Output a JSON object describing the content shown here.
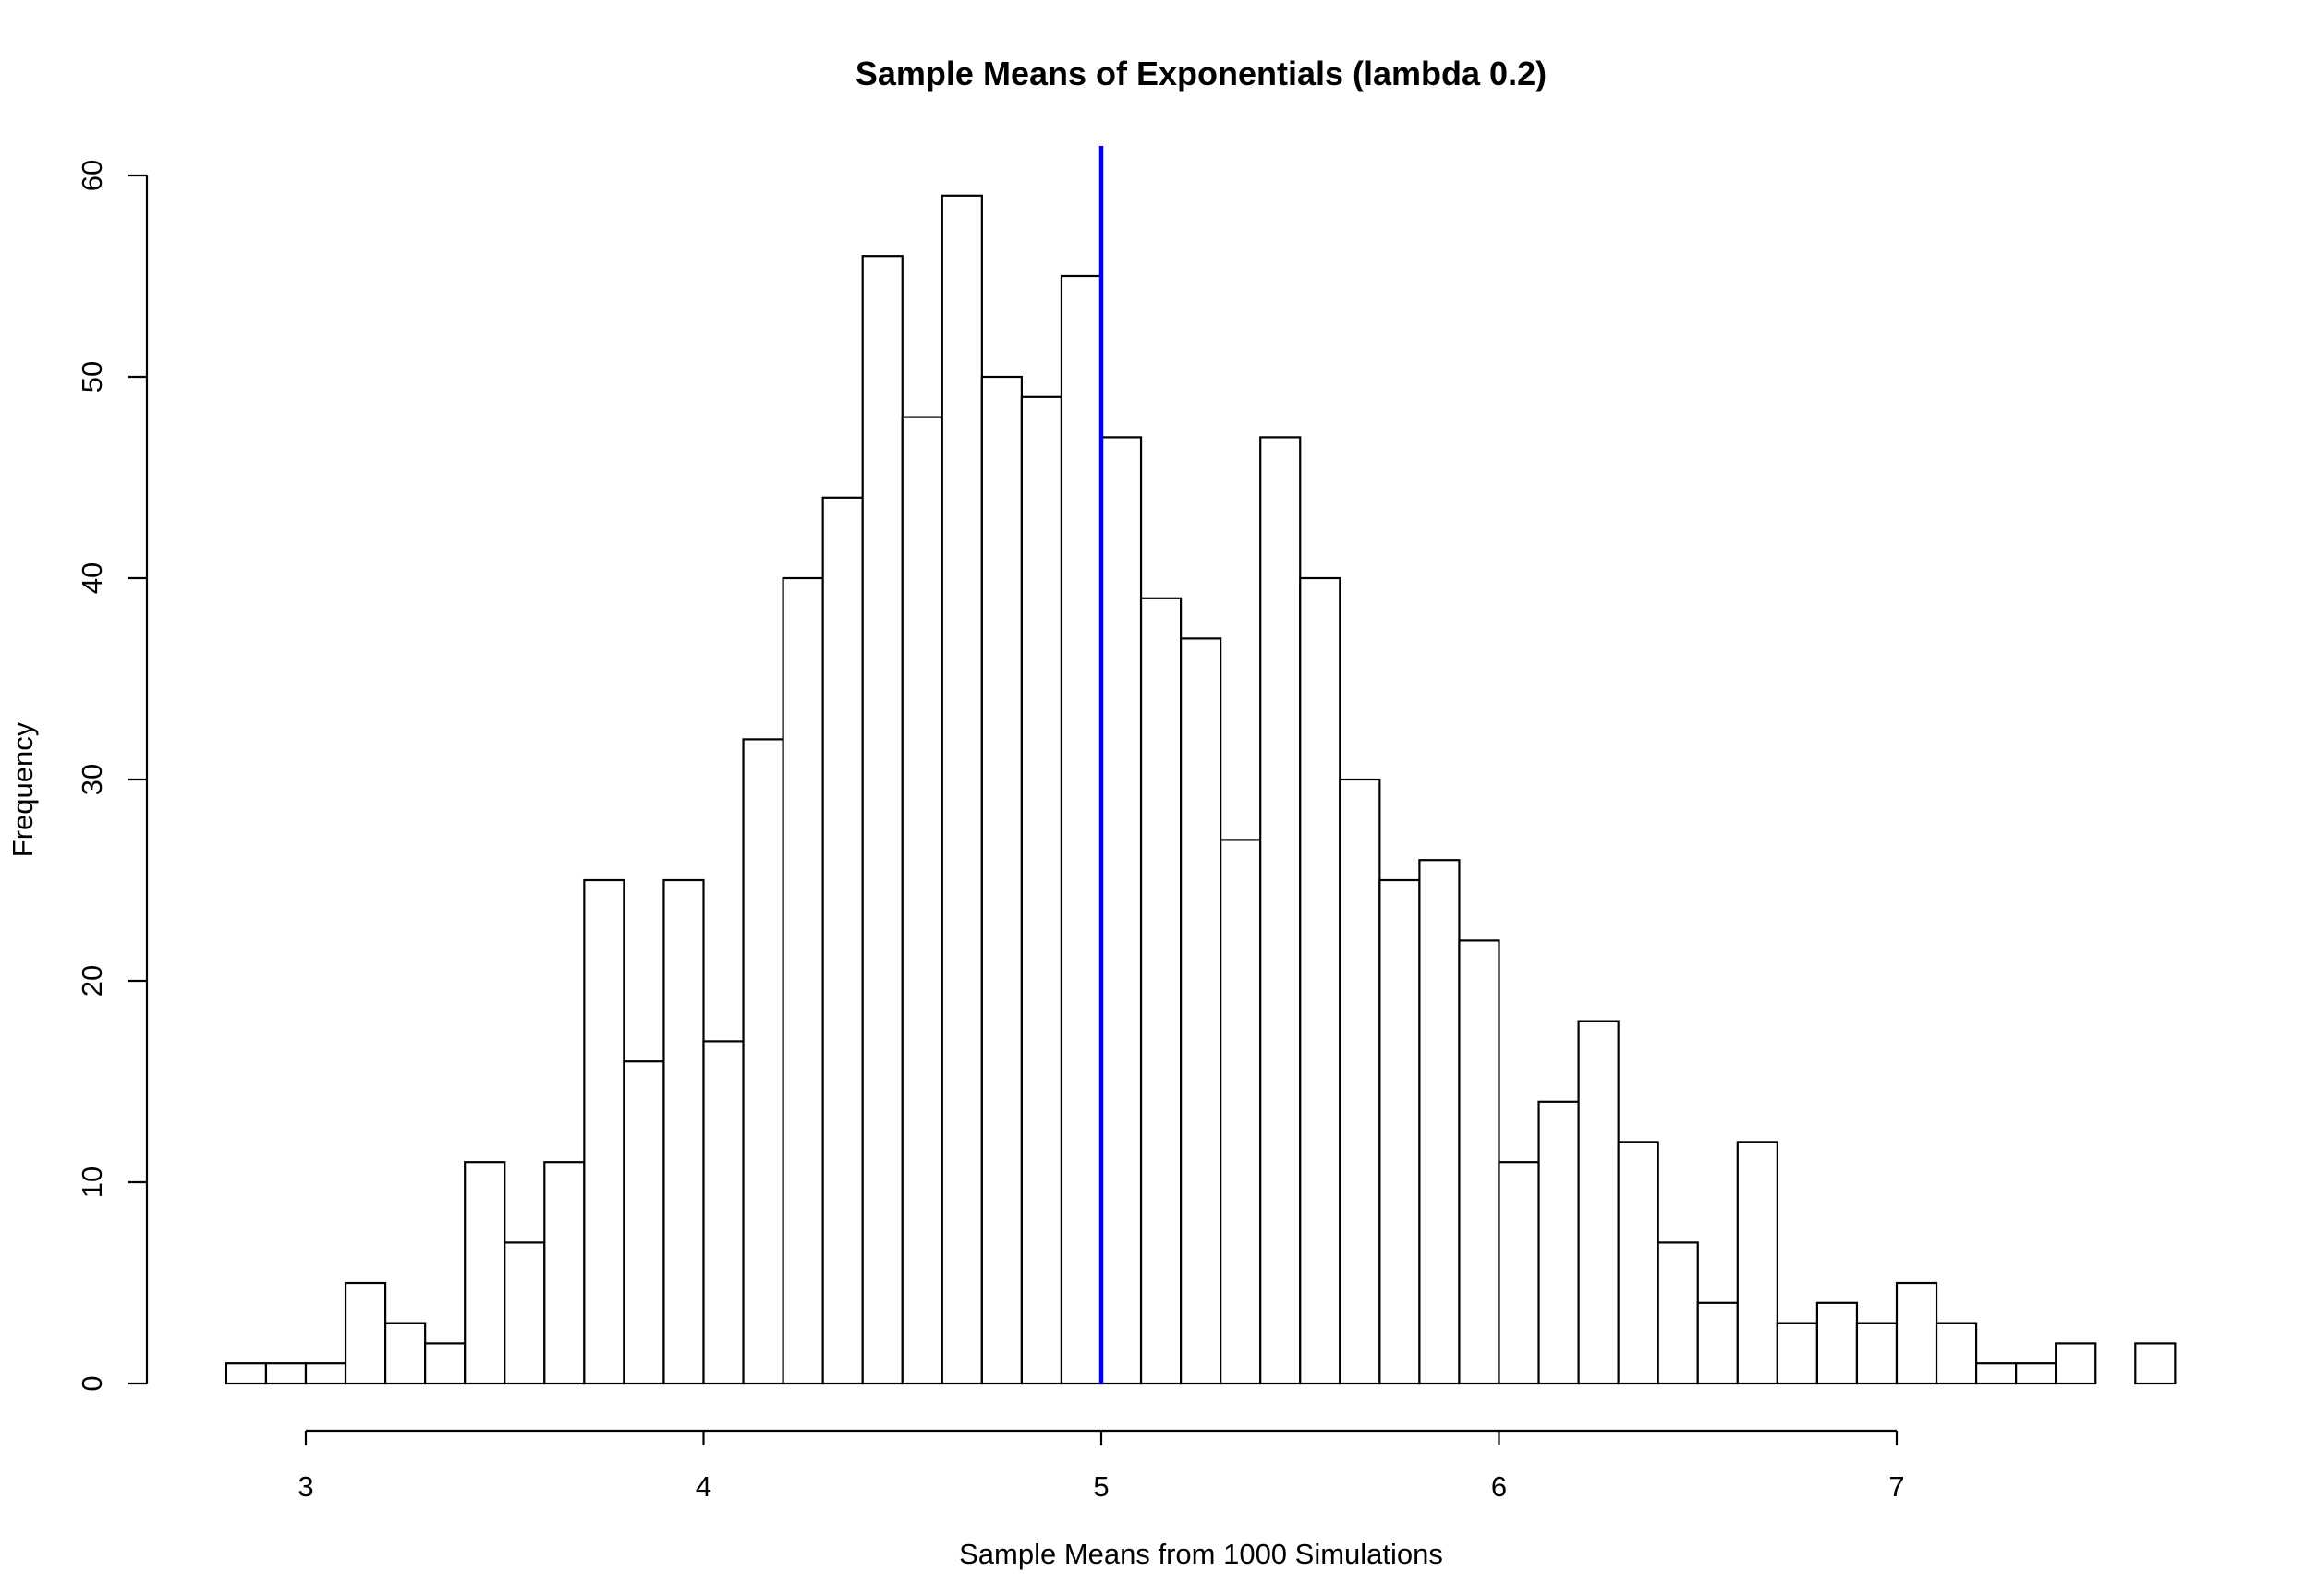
{
  "chart_data": {
    "type": "bar",
    "title": "Sample Means of Exponentials (lambda 0.2)",
    "xlabel": "Sample Means from 1000 Simulations",
    "ylabel": "Frequency",
    "bin_width": 0.1,
    "bins_start": [
      2.8,
      2.9,
      3.0,
      3.1,
      3.2,
      3.3,
      3.4,
      3.5,
      3.6,
      3.7,
      3.8,
      3.9,
      4.0,
      4.1,
      4.2,
      4.3,
      4.4,
      4.5,
      4.6,
      4.7,
      4.8,
      4.9,
      5.0,
      5.1,
      5.2,
      5.3,
      5.4,
      5.5,
      5.6,
      5.7,
      5.8,
      5.9,
      6.0,
      6.1,
      6.2,
      6.3,
      6.4,
      6.5,
      6.6,
      6.7,
      6.8,
      6.9,
      7.0,
      7.1,
      7.2,
      7.3,
      7.4,
      7.5,
      7.6
    ],
    "values": [
      1,
      1,
      1,
      5,
      3,
      2,
      11,
      7,
      11,
      25,
      16,
      25,
      17,
      32,
      40,
      44,
      56,
      48,
      59,
      50,
      49,
      55,
      47,
      39,
      37,
      27,
      47,
      40,
      30,
      25,
      26,
      22,
      11,
      14,
      18,
      12,
      7,
      4,
      12,
      3,
      4,
      3,
      5,
      3,
      1,
      1,
      2,
      0,
      2
    ],
    "xlim": [
      3,
      7
    ],
    "ylim": [
      0,
      60
    ],
    "x_ticks": [
      "3",
      "4",
      "5",
      "6",
      "7"
    ],
    "y_ticks": [
      "0",
      "10",
      "20",
      "30",
      "40",
      "50",
      "60"
    ],
    "reference_line": {
      "x": 5,
      "color": "#0000ee"
    },
    "bar_fill": "#ffffff",
    "bar_stroke": "#000000",
    "grid": false
  }
}
